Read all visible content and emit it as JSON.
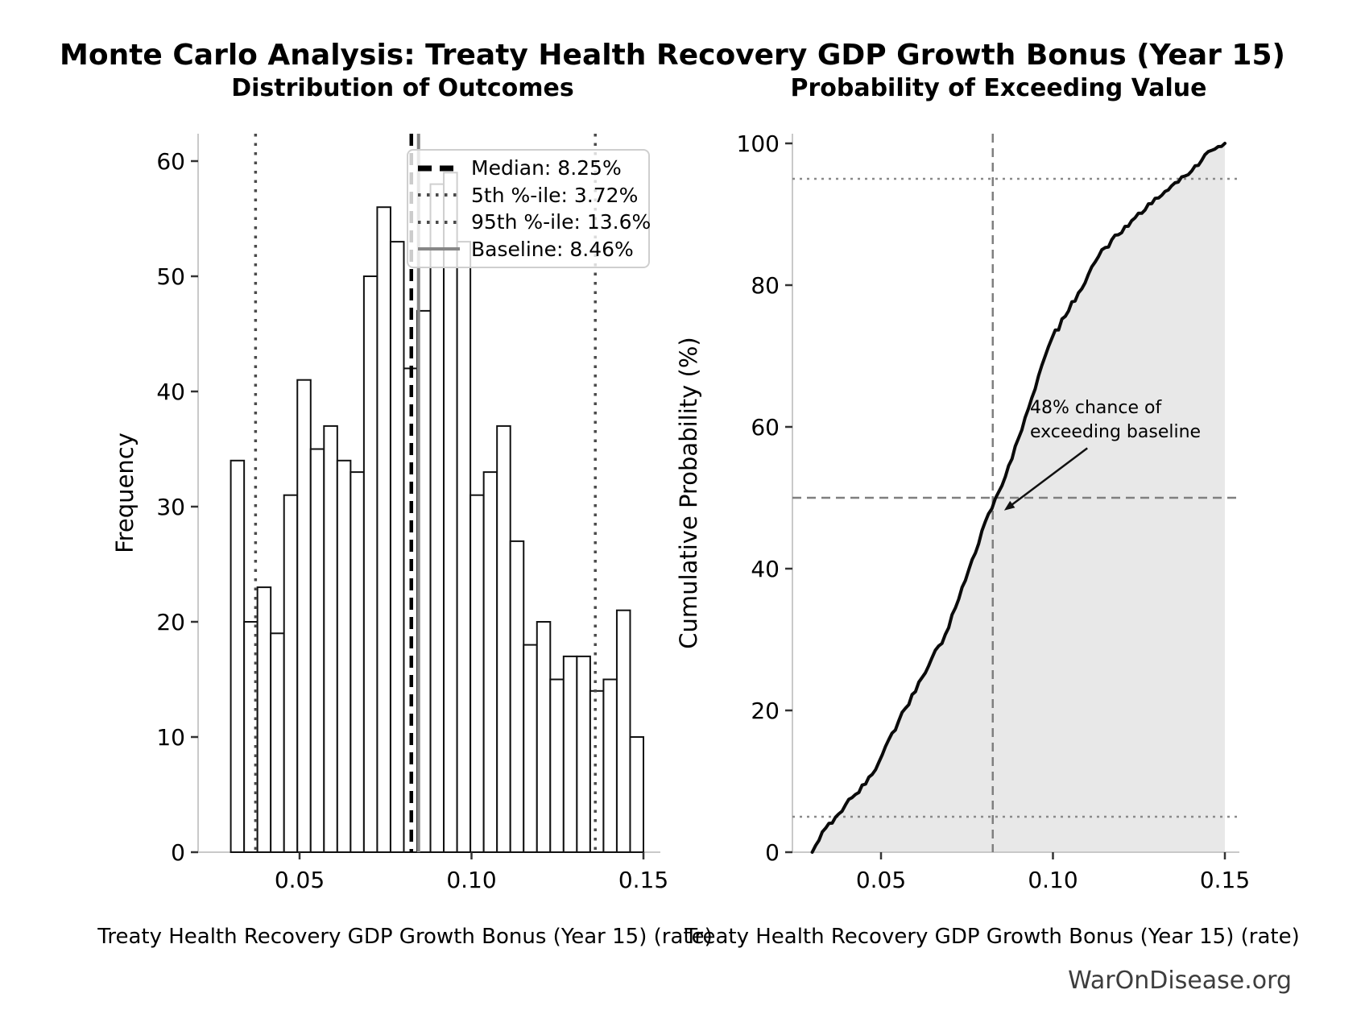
{
  "suptitle": "Monte Carlo Analysis: Treaty Health Recovery GDP Growth Bonus (Year 15)",
  "watermark": "WarOnDisease.org",
  "colors": {
    "background": "#ffffff",
    "bar_fill": "#ffffff",
    "bar_edge": "#111111",
    "median_line": "#000000",
    "percentile_line": "#4a4a4a",
    "baseline_line": "#878787",
    "cdf_line": "#0a0a0a",
    "cdf_fill": "#e8e8e8",
    "crosshair_dashed": "#7f7f7f",
    "percentile_dotted_right": "#8a8a8a",
    "spine": "#c9c9c9",
    "tick": "#333333",
    "watermark_text": "#3d3d3d"
  },
  "chart_data": [
    {
      "type": "bar",
      "subtype": "histogram",
      "title": "Distribution of Outcomes",
      "xlabel": "Treaty Health Recovery GDP Growth Bonus (Year 15) (rate)",
      "ylabel": "Frequency",
      "n_samples": 1000,
      "bin_start": 0.03,
      "bin_width": 0.003871,
      "counts": [
        34,
        20,
        23,
        19,
        31,
        41,
        35,
        37,
        34,
        33,
        50,
        56,
        53,
        42,
        47,
        58,
        59,
        53,
        31,
        33,
        37,
        27,
        18,
        20,
        15,
        17,
        17,
        14,
        15,
        21,
        10
      ],
      "x_ticks": [
        {
          "v": 0.05,
          "label": "0.05"
        },
        {
          "v": 0.1,
          "label": "0.10"
        },
        {
          "v": 0.15,
          "label": "0.15"
        }
      ],
      "y_ticks": [
        {
          "v": 0,
          "label": "0"
        },
        {
          "v": 10,
          "label": "10"
        },
        {
          "v": 20,
          "label": "20"
        },
        {
          "v": 30,
          "label": "30"
        },
        {
          "v": 40,
          "label": "40"
        },
        {
          "v": 50,
          "label": "50"
        },
        {
          "v": 60,
          "label": "60"
        }
      ],
      "xlim": [
        0.0203,
        0.1549
      ],
      "ylim": [
        0,
        62.4
      ],
      "grid": false,
      "legend_position": "upper right",
      "markers": {
        "median": {
          "value": 0.0825,
          "label": "Median: 8.25%"
        },
        "p5": {
          "value": 0.0372,
          "label": "5th %-ile: 3.72%"
        },
        "p95": {
          "value": 0.136,
          "label": "95th %-ile: 13.6%"
        },
        "baseline": {
          "value": 0.0846,
          "label": "Baseline: 8.46%"
        }
      }
    },
    {
      "type": "line",
      "subtype": "ecdf",
      "title": "Probability of Exceeding Value",
      "xlabel": "Treaty Health Recovery GDP Growth Bonus (Year 15) (rate)",
      "ylabel": "Cumulative Probability (%)",
      "x": [
        0.03,
        0.0339,
        0.0377,
        0.0416,
        0.0455,
        0.0494,
        0.0532,
        0.0571,
        0.061,
        0.0648,
        0.0687,
        0.0726,
        0.0765,
        0.0803,
        0.0842,
        0.0881,
        0.0919,
        0.0958,
        0.0997,
        0.1036,
        0.1074,
        0.1113,
        0.1152,
        0.119,
        0.1229,
        0.1268,
        0.1307,
        0.1345,
        0.1384,
        0.1423,
        0.1461,
        0.15
      ],
      "y": [
        0,
        3.4,
        5.4,
        7.7,
        9.6,
        12.7,
        16.8,
        20.3,
        24.0,
        27.4,
        30.7,
        35.7,
        41.3,
        46.6,
        50.8,
        55.5,
        61.3,
        67.2,
        72.5,
        75.6,
        78.9,
        82.6,
        85.3,
        87.1,
        89.1,
        90.6,
        92.3,
        94.0,
        95.4,
        96.9,
        99.0,
        100
      ],
      "x_ticks": [
        {
          "v": 0.05,
          "label": "0.05"
        },
        {
          "v": 0.1,
          "label": "0.10"
        },
        {
          "v": 0.15,
          "label": "0.15"
        }
      ],
      "y_ticks": [
        {
          "v": 0,
          "label": "0"
        },
        {
          "v": 20,
          "label": "20"
        },
        {
          "v": 40,
          "label": "40"
        },
        {
          "v": 60,
          "label": "60"
        },
        {
          "v": 80,
          "label": "80"
        },
        {
          "v": 100,
          "label": "100"
        }
      ],
      "xlim": [
        0.0242,
        0.1542
      ],
      "ylim": [
        0,
        101.4
      ],
      "grid": false,
      "reference_lines": {
        "dotted_h": [
          5,
          95
        ],
        "dashed_h": 50,
        "dashed_v": 0.0825
      },
      "annotation": {
        "line1": "48% chance of",
        "line2": "exceeding baseline",
        "text_xy": [
          0.0933,
          63.8
        ],
        "arrow_from": [
          0.11,
          57.0
        ],
        "arrow_to": [
          0.0858,
          48.2
        ]
      }
    }
  ]
}
